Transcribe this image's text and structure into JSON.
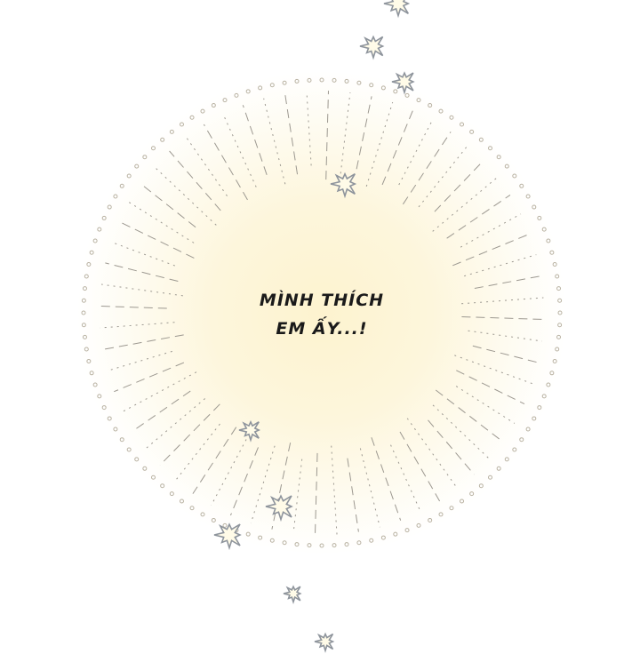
{
  "caption": {
    "line1": "MÌNH THÍCH",
    "line2": "EM ẤY...!"
  },
  "colors": {
    "glow": "#fdf6d8",
    "dots": "#b9b2a2",
    "rays": "#9c9890",
    "stars": "#8e949c",
    "star_fill": "#fffbe8"
  }
}
